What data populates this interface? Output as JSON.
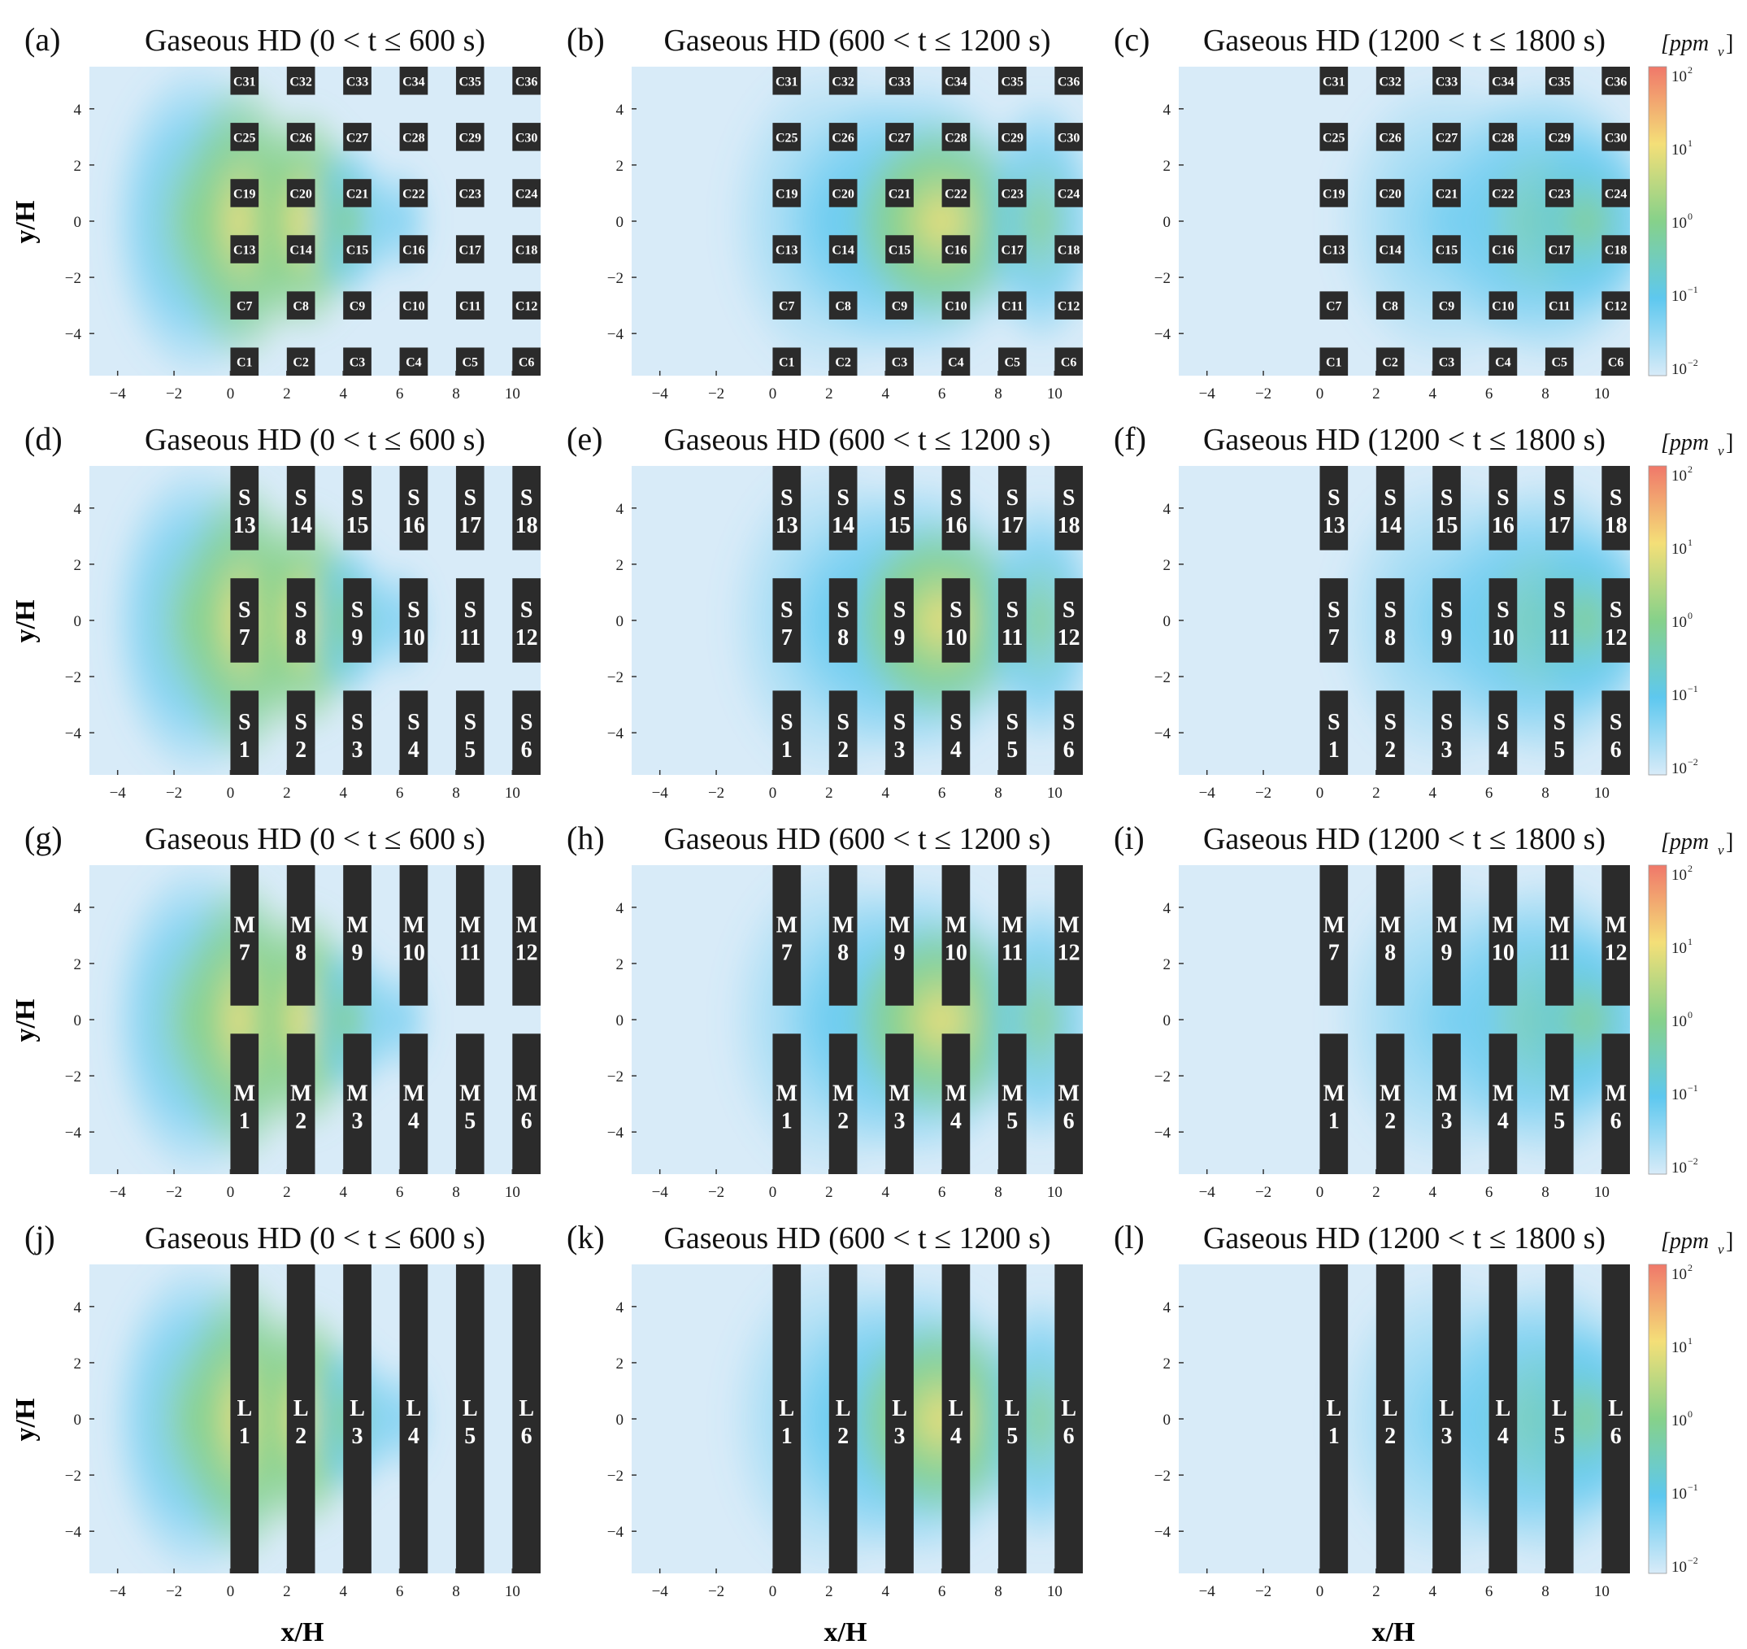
{
  "figure": {
    "row_ylabel": "y/H",
    "col_xlabel": "x/H",
    "colorbar_unit": "[ppm",
    "colorbar_unit_sub": "v",
    "colorbar_unit_close": "]"
  },
  "chart_data": {
    "type": "heatmap",
    "quantity": "Gaseous HD",
    "unit": "ppmv",
    "color_scale": "log",
    "color_range": [
      0.01,
      100
    ],
    "colorbar_ticks": [
      "10",
      "10",
      "10",
      "10",
      "10"
    ],
    "colorbar_exponents": [
      "2",
      "1",
      "0",
      "−1",
      "−2"
    ],
    "colormap": [
      "#d8ebf8",
      "#5ec8ef",
      "#86d18a",
      "#f4df78",
      "#f0786a"
    ],
    "xlim": [
      -5,
      11
    ],
    "ylim": [
      -5.5,
      5.5
    ],
    "x_ticks": [
      -4,
      -2,
      0,
      2,
      4,
      6,
      8,
      10
    ],
    "y_ticks": [
      -4,
      -2,
      0,
      2,
      4
    ],
    "x_tick_labels": [
      "−4",
      "−2",
      "0",
      "2",
      "4",
      "6",
      "8",
      "10"
    ],
    "y_tick_labels": [
      "−4",
      "−2",
      "0",
      "2",
      "4"
    ],
    "time_windows": [
      "Gaseous HD (0 < t ≤ 600 s)",
      "Gaseous HD (600 < t ≤ 1200 s)",
      "Gaseous HD (1200 < t ≤ 1800 s)"
    ],
    "panel_letters": [
      "(a)",
      "(b)",
      "(c)",
      "(d)",
      "(e)",
      "(f)",
      "(g)",
      "(h)",
      "(i)",
      "(j)",
      "(k)",
      "(l)"
    ],
    "layouts": [
      {
        "name": "cube",
        "label_style": "inline",
        "columns": 6,
        "rows": 6,
        "block_x_starts": [
          0,
          2,
          4,
          6,
          8,
          10
        ],
        "block_width": 1,
        "block_row_y_ranges": [
          [
            -5.5,
            -4.5
          ],
          [
            -3.5,
            -2.5
          ],
          [
            -1.5,
            -0.5
          ],
          [
            0.5,
            1.5
          ],
          [
            2.5,
            3.5
          ],
          [
            4.5,
            5.5
          ]
        ],
        "block_labels": [
          [
            "C1",
            "C2",
            "C3",
            "C4",
            "C5",
            "C6"
          ],
          [
            "C7",
            "C8",
            "C9",
            "C10",
            "C11",
            "C12"
          ],
          [
            "C13",
            "C14",
            "C15",
            "C16",
            "C17",
            "C18"
          ],
          [
            "C19",
            "C20",
            "C21",
            "C22",
            "C23",
            "C24"
          ],
          [
            "C25",
            "C26",
            "C27",
            "C28",
            "C29",
            "C30"
          ],
          [
            "C31",
            "C32",
            "C33",
            "C34",
            "C35",
            "C36"
          ]
        ]
      },
      {
        "name": "short",
        "label_style": "stacked",
        "columns": 6,
        "rows": 3,
        "block_x_starts": [
          0,
          2,
          4,
          6,
          8,
          10
        ],
        "block_width": 1,
        "block_row_y_ranges": [
          [
            -5.5,
            -2.5
          ],
          [
            -1.5,
            1.5
          ],
          [
            2.5,
            5.5
          ]
        ],
        "block_labels": [
          [
            [
              "S",
              "1"
            ],
            [
              "S",
              "2"
            ],
            [
              "S",
              "3"
            ],
            [
              "S",
              "4"
            ],
            [
              "S",
              "5"
            ],
            [
              "S",
              "6"
            ]
          ],
          [
            [
              "S",
              "7"
            ],
            [
              "S",
              "8"
            ],
            [
              "S",
              "9"
            ],
            [
              "S",
              "10"
            ],
            [
              "S",
              "11"
            ],
            [
              "S",
              "12"
            ]
          ],
          [
            [
              "S",
              "13"
            ],
            [
              "S",
              "14"
            ],
            [
              "S",
              "15"
            ],
            [
              "S",
              "16"
            ],
            [
              "S",
              "17"
            ],
            [
              "S",
              "18"
            ]
          ]
        ]
      },
      {
        "name": "medium",
        "label_style": "stacked",
        "columns": 6,
        "rows": 2,
        "block_x_starts": [
          0,
          2,
          4,
          6,
          8,
          10
        ],
        "block_width": 1,
        "block_row_y_ranges": [
          [
            -5.5,
            -0.5
          ],
          [
            0.5,
            5.5
          ]
        ],
        "block_labels": [
          [
            [
              "M",
              "1"
            ],
            [
              "M",
              "2"
            ],
            [
              "M",
              "3"
            ],
            [
              "M",
              "4"
            ],
            [
              "M",
              "5"
            ],
            [
              "M",
              "6"
            ]
          ],
          [
            [
              "M",
              "7"
            ],
            [
              "M",
              "8"
            ],
            [
              "M",
              "9"
            ],
            [
              "M",
              "10"
            ],
            [
              "M",
              "11"
            ],
            [
              "M",
              "12"
            ]
          ]
        ]
      },
      {
        "name": "long",
        "label_style": "stacked",
        "columns": 6,
        "rows": 1,
        "block_x_starts": [
          0,
          2,
          4,
          6,
          8,
          10
        ],
        "block_width": 1,
        "block_row_y_ranges": [
          [
            -5.5,
            5.5
          ]
        ],
        "block_labels": [
          [
            [
              "L",
              "1"
            ],
            [
              "L",
              "2"
            ],
            [
              "L",
              "3"
            ],
            [
              "L",
              "4"
            ],
            [
              "L",
              "5"
            ],
            [
              "L",
              "6"
            ]
          ]
        ]
      }
    ]
  }
}
